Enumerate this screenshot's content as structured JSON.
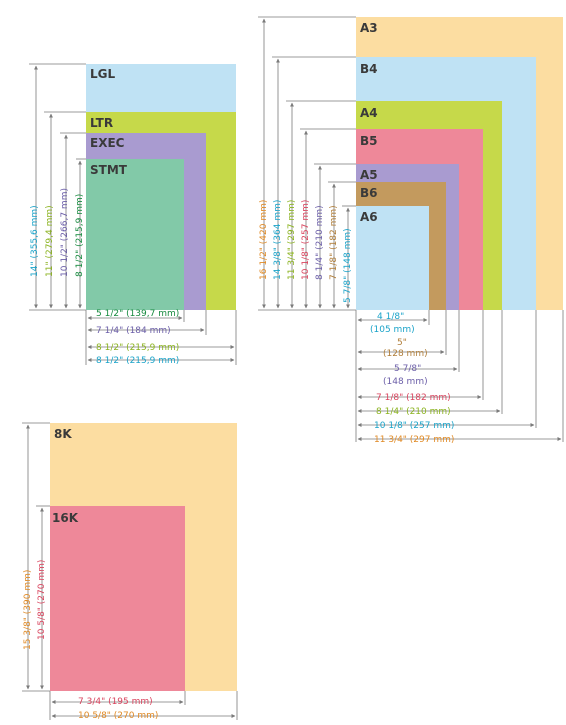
{
  "colors": {
    "lgl": "#bfe2f4",
    "ltr": "#c6d94a",
    "exec": "#a99bd0",
    "stmt": "#82c9a8",
    "a3": "#fcdda1",
    "b4": "#bfe2f4",
    "a4": "#c6d94a",
    "b5": "#ee8899",
    "a5": "#a99bd0",
    "b6": "#c39a5e",
    "a6": "#bfe2f4",
    "k8": "#fcdda1",
    "k16": "#ee8899",
    "txt_cyan": "#1aa3c9",
    "txt_green": "#8bb31f",
    "txt_purple": "#6b5ea8",
    "txt_darkgreen": "#178a3f",
    "txt_orange": "#e08a25",
    "txt_pink": "#d9445e",
    "txt_brown": "#b07e3a"
  },
  "us_group": {
    "papers": [
      "LGL",
      "LTR",
      "EXEC",
      "STMT"
    ],
    "heights": [
      "14\" (355,6 mm)",
      "11\" (279,4 mm)",
      "10 1/2\" (266,7 mm)",
      "8 1/2\" (215,9 mm)"
    ],
    "widths": [
      "5 1/2\" (139,7 mm)",
      "7 1/4\" (184 mm)",
      "8 1/2\" (215,9 mm)",
      "8 1/2\" (215,9 mm)"
    ]
  },
  "iso_group": {
    "papers": [
      "A3",
      "B4",
      "A4",
      "B5",
      "A5",
      "B6",
      "A6"
    ],
    "heights": [
      "16 1/2\" (420 mm)",
      "14 3/8\" (364 mm)",
      "11 3/4\" (297 mm)",
      "10 1/8\" (257 mm)",
      "8 1/4\" (210 mm)",
      "7 1/8\" (182 mm)",
      "5 7/8\" (148 mm)"
    ],
    "widths": [
      {
        "inch": "4 1/8\"",
        "mm": "(105 mm)"
      },
      {
        "inch": "5\"",
        "mm": "(128 mm)"
      },
      {
        "inch": "5 7/8\"",
        "mm": "(148 mm)"
      },
      {
        "inch": "7 1/8\" (182 mm)",
        "mm": ""
      },
      {
        "inch": "8 1/4\" (210 mm)",
        "mm": ""
      },
      {
        "inch": "10 1/8\" (257 mm)",
        "mm": ""
      },
      {
        "inch": "11 3/4\" (297 mm)",
        "mm": ""
      }
    ]
  },
  "k_group": {
    "papers": [
      "8K",
      "16K"
    ],
    "heights": [
      "15 3/8\" (390 mm)",
      "10 5/8\" (270 mm)"
    ],
    "widths": [
      "7 3/4\" (195 mm)",
      "10 5/8\" (270 mm)"
    ]
  }
}
